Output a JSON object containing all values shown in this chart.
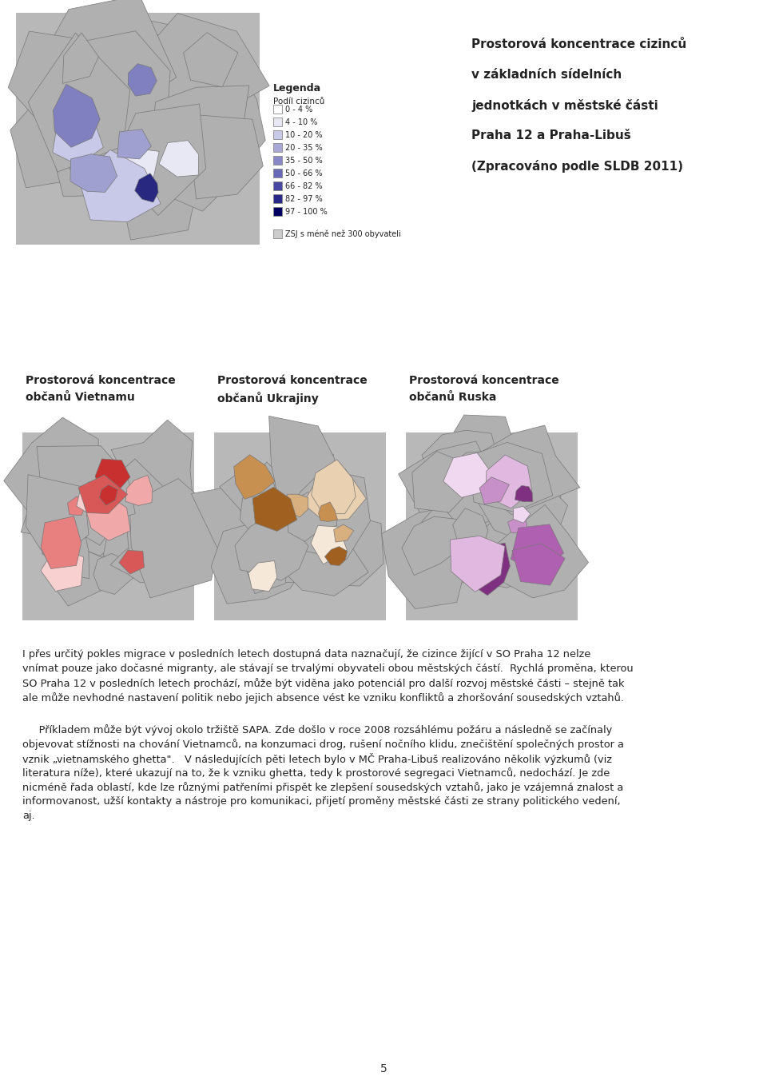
{
  "background_color": "#ffffff",
  "page_number": "5",
  "top_title_lines": [
    "Prostorová koncentrace cizinců",
    "v základních sídelních",
    "jednotkách v městské části",
    "Praha 12 a Praha-Libuš",
    "(Zpracováno podle SLDB 2011)"
  ],
  "legend_title": "Legenda",
  "legend_subtitle": "Podíl cizinců",
  "legend_items": [
    {
      "label": "0 - 4 %",
      "color": "#ffffff",
      "edgecolor": "#888888"
    },
    {
      "label": "4 - 10 %",
      "color": "#e8e8f5",
      "edgecolor": "#888888"
    },
    {
      "label": "10 - 20 %",
      "color": "#c8c8e8",
      "edgecolor": "#888888"
    },
    {
      "label": "20 - 35 %",
      "color": "#a8a8d8",
      "edgecolor": "#888888"
    },
    {
      "label": "35 - 50 %",
      "color": "#8888c8",
      "edgecolor": "#888888"
    },
    {
      "label": "50 - 66 %",
      "color": "#6868b8",
      "edgecolor": "#888888"
    },
    {
      "label": "66 - 82 %",
      "color": "#4848a0",
      "edgecolor": "#888888"
    },
    {
      "label": "82 - 97 %",
      "color": "#282888",
      "edgecolor": "#888888"
    },
    {
      "label": "97 - 100 %",
      "color": "#000060",
      "edgecolor": "#888888"
    }
  ],
  "legend_zsj": "ZSJ s méně než 300 obyvateli",
  "legend_zsj_color": "#cccccc",
  "map_titles": [
    [
      "Prostorová koncentrace",
      "občanů Vietnamu"
    ],
    [
      "Prostorová koncentrace",
      "občanů Ukrajiny"
    ],
    [
      "Prostorová koncentrace",
      "občanů Ruska"
    ]
  ],
  "map_colors_blue": [
    "#e8e8f5",
    "#c8c8e8",
    "#a0a0d0",
    "#8080c0",
    "#5050a8",
    "#282880"
  ],
  "map_colors_vietnam": [
    "#f8d0d0",
    "#f0a8a8",
    "#e88080",
    "#d85858",
    "#c83030"
  ],
  "map_colors_ukraine": [
    "#f5e8d8",
    "#e8d0b0",
    "#d8b080",
    "#c89050",
    "#a06020"
  ],
  "map_colors_russia": [
    "#f0d8f0",
    "#e0b8e0",
    "#c890c8",
    "#b060b0",
    "#803080"
  ],
  "body_text": [
    "I přes určitý pokles migrace v posledních letech dostupná data naznačují, že cizince žijící v SO Praha 12 nelze",
    "vnímat pouze jako dočasné migranty, ale stávají se trvalými obyvateli obou městských částí.  Rychlá proměna, kterou",
    "SO Praha 12 v posledních letech prochází, může být viděna jako potenciál pro další rozvoj městské části – stejně tak",
    "ale může nevhodné nastavení politik nebo jejich absence vést ke vzniku konfliktů a zhoršování sousedských vztahů."
  ],
  "body_text2": [
    "     Příkladem může být vývoj okolo tržiště SAPA. Zde došlo v roce 2008 rozsáhlému požáru a následně se začínaly",
    "objevovat stížnosti na chování Vietnamců, na konzumaci drog, rušení nočního klidu, znečištění společných prostor a",
    "vznik „vietnamského ghetta\".   V následujících pěti letech bylo v MČ Praha-Libuš realizováno několik výzkumů (viz",
    "literatura níže), které ukazují na to, že k vzniku ghetta, tedy k prostorové segregaci Vietnamců, nedochází. Je zde",
    "nicméně řada oblastí, kde lze různými patřeními přispět ke zlepšení sousedských vztahů, jako je vzájemná znalost a",
    "informovanost, užší kontakty a nástroje pro komunikaci, přijetí proměny městské části ze strany politického vedení,",
    "aj."
  ]
}
